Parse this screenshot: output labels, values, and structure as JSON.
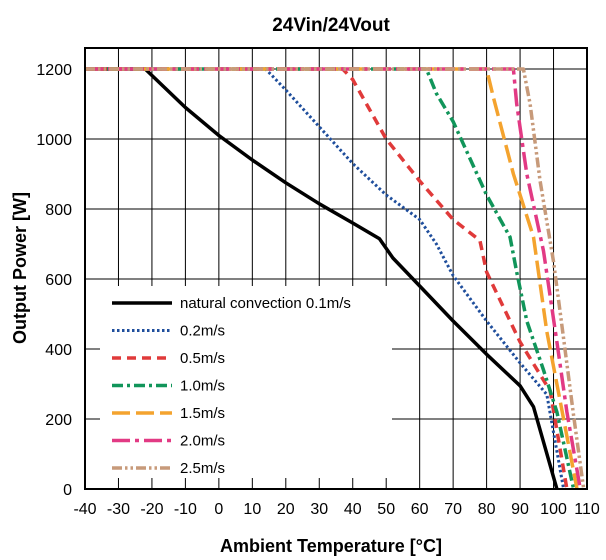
{
  "chart_data": {
    "type": "line",
    "title": "24Vin/24Vout",
    "xlabel": "Ambient Temperature [°C]",
    "ylabel": "Output Power [W]",
    "xlim": [
      -40,
      110
    ],
    "ylim": [
      0,
      1260
    ],
    "xticks": [
      "-40",
      "-30",
      "-20",
      "-10",
      "0",
      "10",
      "20",
      "30",
      "40",
      "50",
      "60",
      "70",
      "80",
      "90",
      "100",
      "110"
    ],
    "xtick_values": [
      -40,
      -30,
      -20,
      -10,
      0,
      10,
      20,
      30,
      40,
      50,
      60,
      70,
      80,
      90,
      100,
      110
    ],
    "yticks": [
      "0",
      "200",
      "400",
      "600",
      "800",
      "1000",
      "1200"
    ],
    "ytick_values": [
      0,
      200,
      400,
      600,
      800,
      1000,
      1200
    ],
    "grid": true,
    "legend_position": "bottom-left",
    "series": [
      {
        "name": "natural convection 0.1m/s",
        "color": "#000000",
        "dash": "solid",
        "x": [
          -40,
          -22,
          -10,
          0,
          10,
          20,
          30,
          40,
          48,
          52,
          60,
          70,
          80,
          90,
          94,
          101
        ],
        "y": [
          1200,
          1200,
          1090,
          1010,
          940,
          875,
          815,
          760,
          715,
          660,
          580,
          480,
          385,
          295,
          235,
          0
        ]
      },
      {
        "name": "0.2m/s",
        "color": "#1f4e9c",
        "dash": "dotted",
        "x": [
          -40,
          14,
          20,
          30,
          40,
          50,
          60,
          65,
          70,
          80,
          90,
          98,
          103
        ],
        "y": [
          1200,
          1200,
          1140,
          1035,
          930,
          840,
          770,
          700,
          610,
          480,
          360,
          270,
          0
        ]
      },
      {
        "name": "0.5m/s",
        "color": "#e03a3a",
        "dash": "dashed",
        "x": [
          -40,
          37,
          40,
          50,
          60,
          70,
          78,
          80,
          90,
          99,
          104
        ],
        "y": [
          1200,
          1200,
          1170,
          1000,
          880,
          770,
          710,
          620,
          420,
          280,
          0
        ]
      },
      {
        "name": "1.0m/s",
        "color": "#11955a",
        "dash": "dashdot",
        "x": [
          -40,
          62,
          65,
          70,
          80,
          87,
          89,
          92,
          97,
          101,
          106
        ],
        "y": [
          1200,
          1200,
          1130,
          1050,
          840,
          720,
          620,
          480,
          340,
          220,
          0
        ]
      },
      {
        "name": "1.5m/s",
        "color": "#f4a32e",
        "dash": "longdash",
        "x": [
          -40,
          80,
          82,
          88,
          94,
          98,
          103,
          107
        ],
        "y": [
          1200,
          1200,
          1120,
          900,
          720,
          450,
          200,
          0
        ]
      },
      {
        "name": "2.0m/s",
        "color": "#e23a84",
        "dash": "dashdotlong",
        "x": [
          -40,
          88,
          89,
          92,
          97,
          101,
          104,
          108
        ],
        "y": [
          1200,
          1200,
          1100,
          900,
          680,
          420,
          220,
          0
        ]
      },
      {
        "name": "2.5m/s",
        "color": "#c79a7a",
        "dash": "dashdotdot",
        "x": [
          -40,
          91,
          93,
          96,
          100,
          103,
          106,
          109
        ],
        "y": [
          1200,
          1200,
          1100,
          880,
          650,
          430,
          210,
          0
        ]
      }
    ]
  }
}
